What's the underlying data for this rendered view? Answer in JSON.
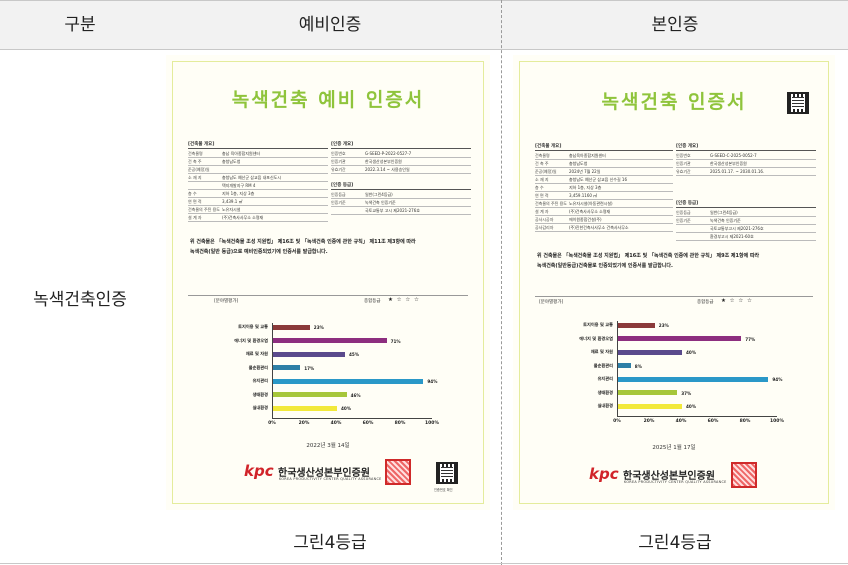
{
  "header": {
    "col1": "구분",
    "col2": "예비인증",
    "col3": "본인증"
  },
  "row": {
    "label": "녹색건축인증"
  },
  "grades": {
    "prelim": "그린4등급",
    "main": "그린4등급"
  },
  "prelim": {
    "title": "녹색건축 예비 인증서",
    "building_title": "[건축물 개요]",
    "building_rows": [
      {
        "k": "건축물명",
        "v": "충남 육아종합지원센터"
      },
      {
        "k": "건 축 주",
        "v": "충청남도청"
      },
      {
        "k": "준공(예정)일",
        "v": ""
      },
      {
        "k": "소 재 지",
        "v": "충청남도 예산군 삽교읍 내포신도시"
      },
      {
        "k": "",
        "v": "택지개발지구 RM 4"
      },
      {
        "k": "층 수",
        "v": "지하 1층, 지상 3층"
      },
      {
        "k": "연 면 적",
        "v": "3,439.1 ㎡"
      },
      {
        "k": "건축물의 주된 용도",
        "v": "노유자시설"
      },
      {
        "k": "설 계 자",
        "v": "(주)건축사사무소 소명재"
      }
    ],
    "cert_title": "[인증 개요]",
    "cert_rows": [
      {
        "k": "인증번호",
        "v": "G-SEED-P-2022-0527-7"
      },
      {
        "k": "인증기관",
        "v": "한국생산성본부인증원"
      },
      {
        "k": "유효기간",
        "v": "2022.3.14 ~ 사용승인일"
      }
    ],
    "grade_title": "[인증 등급]",
    "grade_rows": [
      {
        "k": "인증등급",
        "v": "일반(그린4등급)"
      },
      {
        "k": "인증기준",
        "v": "녹색건축 인증기준"
      },
      {
        "k": "",
        "v": "국토교통부 고시 제2021-276호"
      }
    ],
    "stmt1": "위 건축물은 「녹색건축물 조성 지원법」 제16조 및 「녹색건축 인증에 관한 규칙」 제11조 제3항에 따라",
    "stmt2": "녹색건축(일반 등급)으로 예비인증되었기에 인증서를 발급합니다.",
    "section": "[분야별평가]",
    "overall": "종합등급",
    "stars": "★ ☆ ☆ ☆",
    "date": "2022년 3월 14일"
  },
  "main": {
    "title": "녹색건축 인증서",
    "building_title": "[건축물 개요]",
    "building_rows": [
      {
        "k": "건축물명",
        "v": "충남육아종합지원센터"
      },
      {
        "k": "건 축 주",
        "v": "충청남도청"
      },
      {
        "k": "준공(예정)일",
        "v": "2024년 7월 22일"
      },
      {
        "k": "소 재 지",
        "v": "충청남도 예산군 삽교읍 신수길 16"
      },
      {
        "k": "층 수",
        "v": "지하 1층, 지상 3층"
      },
      {
        "k": "연 면 적",
        "v": "3,459.1160 ㎡"
      },
      {
        "k": "건축물의 주된 용도",
        "v": "노유자시설(아동관련시설)"
      },
      {
        "k": "설 계 자",
        "v": "(주)건축사사무소 소명재"
      },
      {
        "k": "공사시공자",
        "v": "에이원종합건설(주)"
      },
      {
        "k": "공사감리자",
        "v": "(주)진한건축사사무소 건축사사무소"
      }
    ],
    "cert_title": "[인증 개요]",
    "cert_rows": [
      {
        "k": "인증번호",
        "v": "G-SEED-C-2025-0052-7"
      },
      {
        "k": "인증기관",
        "v": "한국생산성본부인증원"
      },
      {
        "k": "유효기간",
        "v": "2025.01.17. ~ 2030.01.16."
      }
    ],
    "grade_title": "[인증 등급]",
    "grade_rows": [
      {
        "k": "인증등급",
        "v": "일반(그린4등급)"
      },
      {
        "k": "인증기준",
        "v": "녹색건축 인증기준"
      },
      {
        "k": "",
        "v": "국토교통부고시 제2021-276호"
      },
      {
        "k": "",
        "v": "환경부고시 제2021-60호"
      }
    ],
    "stmt1": "위 건축물은 「녹색건축물 조성 지원법」 제16조 및 「녹색건축 인증에 관한 규칙」 제9조 제1항에 따라",
    "stmt2": "녹색건축(일반등급)건축물로 인증되었기에 인증서를 발급합니다.",
    "section": "[분야별평가]",
    "overall": "종합등급",
    "stars": "★ ☆ ☆ ☆",
    "date": "2025년 1월 17일"
  },
  "org": {
    "kpc": "kpc",
    "name": "한국생산성본부인증원",
    "en": "KOREA PRODUCTIVITY CENTER QUALITY ASSURANCE",
    "qr_label": "인증번호 확인"
  },
  "chart_data": [
    {
      "type": "bar",
      "orientation": "horizontal",
      "categories": [
        "토지이용 및 교통",
        "에너지 및 환경오염",
        "재료 및 자원",
        "물순환관리",
        "유지관리",
        "생태환경",
        "실내환경"
      ],
      "values": [
        23,
        71,
        45,
        17,
        94,
        46,
        40
      ],
      "value_labels": [
        "23%",
        "71%",
        "45%",
        "17%",
        "94%",
        "46%",
        "40%"
      ],
      "colors": [
        "#8b3a3a",
        "#8d2e7f",
        "#5a4a8c",
        "#2e7fa6",
        "#2a98c8",
        "#a6c63a",
        "#f2e93a"
      ],
      "xlim": [
        0,
        100
      ],
      "xticks": [
        "0%",
        "20%",
        "40%",
        "60%",
        "80%",
        "100%"
      ]
    },
    {
      "type": "bar",
      "orientation": "horizontal",
      "categories": [
        "토지이용 및 교통",
        "에너지 및 환경오염",
        "재료 및 자원",
        "물순환관리",
        "유지관리",
        "생태환경",
        "실내환경"
      ],
      "values": [
        23,
        77,
        40,
        8,
        94,
        37,
        40
      ],
      "value_labels": [
        "23%",
        "77%",
        "40%",
        "8%",
        "94%",
        "37%",
        "40%"
      ],
      "colors": [
        "#8b3a3a",
        "#8d2e7f",
        "#5a4a8c",
        "#2e7fa6",
        "#2a98c8",
        "#a6c63a",
        "#f2e93a"
      ],
      "xlim": [
        0,
        100
      ],
      "xticks": [
        "0%",
        "20%",
        "40%",
        "60%",
        "80%",
        "100%"
      ]
    }
  ]
}
